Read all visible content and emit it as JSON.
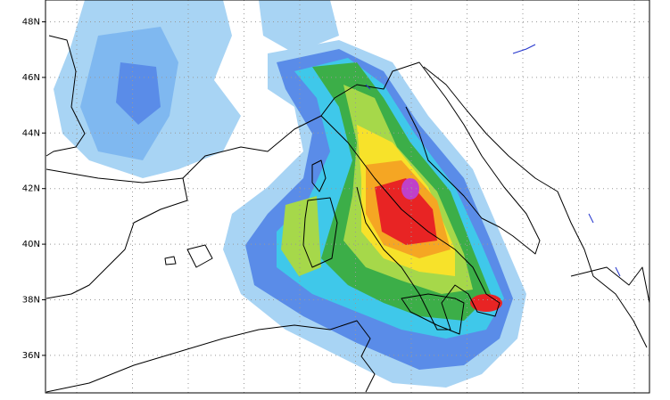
{
  "map": {
    "lat_labels": [
      "48N",
      "46N",
      "44N",
      "42N",
      "40N",
      "38N",
      "36N"
    ]
  }
}
